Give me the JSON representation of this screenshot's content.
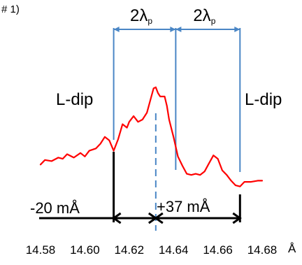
{
  "chart_data": {
    "type": "line",
    "panel_label": "# 1)",
    "x_unit": "Å",
    "x_ticks": [
      14.58,
      14.6,
      14.62,
      14.64,
      14.66,
      14.68
    ],
    "x_tick_labels": [
      "14.58",
      "14.60",
      "14.62",
      "14.64",
      "14.66",
      "14.68"
    ],
    "xlim": [
      14.58,
      14.68
    ],
    "ylim": [
      0,
      1
    ],
    "grid": false,
    "colors": {
      "line": "#ff0000",
      "marker": "#4a86c5",
      "arrow": "#000000"
    },
    "series": [
      {
        "x": [
          14.58,
          14.582,
          14.585,
          14.588,
          14.59,
          14.592,
          14.595,
          14.598,
          14.6,
          14.602,
          14.605,
          14.607,
          14.609,
          14.611,
          14.613,
          14.615,
          14.617,
          14.619,
          14.62,
          14.622,
          14.624,
          14.626,
          14.628,
          14.63,
          14.631,
          14.632,
          14.633,
          14.634,
          14.635,
          14.636,
          14.637,
          14.638,
          14.64,
          14.642,
          14.644,
          14.646,
          14.648,
          14.65,
          14.652,
          14.654,
          14.656,
          14.658,
          14.66,
          14.662,
          14.664,
          14.666,
          14.668,
          14.67,
          14.672,
          14.675,
          14.678,
          14.68
        ],
        "y": [
          0.21,
          0.25,
          0.24,
          0.27,
          0.26,
          0.3,
          0.27,
          0.31,
          0.28,
          0.33,
          0.35,
          0.39,
          0.45,
          0.42,
          0.33,
          0.43,
          0.56,
          0.53,
          0.58,
          0.63,
          0.58,
          0.6,
          0.66,
          0.8,
          0.87,
          0.88,
          0.83,
          0.8,
          0.8,
          0.8,
          0.72,
          0.6,
          0.45,
          0.28,
          0.2,
          0.13,
          0.12,
          0.13,
          0.12,
          0.15,
          0.22,
          0.29,
          0.26,
          0.16,
          0.12,
          0.07,
          0.03,
          0.02,
          0.06,
          0.06,
          0.07,
          0.07
        ]
      }
    ],
    "markers": [
      {
        "x": 14.613,
        "style": "solid",
        "label": "L-dip"
      },
      {
        "x": 14.641,
        "style": "solid",
        "label": ""
      },
      {
        "x": 14.67,
        "style": "solid",
        "label": "L-dip"
      },
      {
        "x": 14.632,
        "style": "dashed",
        "label": ""
      }
    ],
    "spans": [
      {
        "from": 14.613,
        "to": 14.641,
        "label": "2λ",
        "subscript": "p"
      },
      {
        "from": 14.641,
        "to": 14.67,
        "label": "2λ",
        "subscript": "p"
      }
    ],
    "shift_arrows": [
      {
        "from": 14.613,
        "to": 14.632,
        "label": "-20 mÅ"
      },
      {
        "from": 14.632,
        "to": 14.67,
        "label": "+37 mÅ"
      }
    ]
  }
}
